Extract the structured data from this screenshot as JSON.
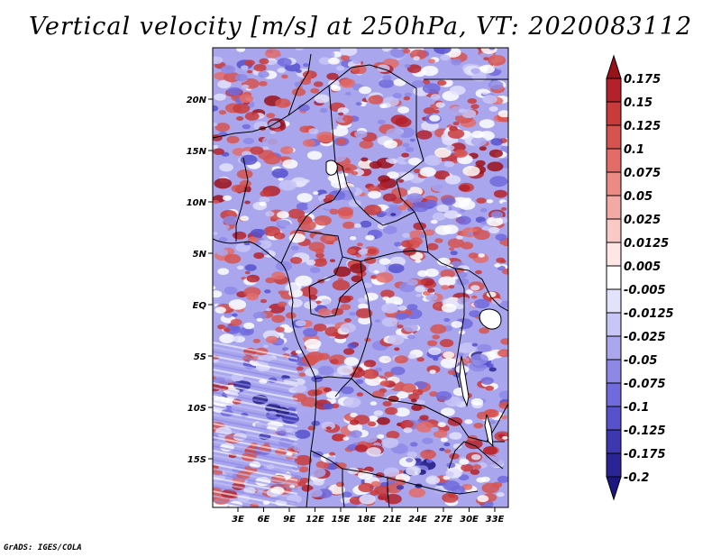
{
  "title": "Vertical velocity [m/s] at 250hPa, VT: 2020083112",
  "footer": "GrADS: IGES/COLA",
  "map": {
    "lat_labels": [
      "20N",
      "15N",
      "10N",
      "5N",
      "EQ",
      "5S",
      "10S",
      "15S"
    ],
    "lon_labels": [
      "3E",
      "6E",
      "9E",
      "12E",
      "15E",
      "18E",
      "21E",
      "24E",
      "27E",
      "30E",
      "33E"
    ]
  },
  "colorbar": {
    "labels": [
      "0.175",
      "0.15",
      "0.125",
      "0.1",
      "0.075",
      "0.05",
      "0.025",
      "0.0125",
      "0.005",
      "-0.005",
      "-0.0125",
      "-0.025",
      "-0.05",
      "-0.075",
      "-0.1",
      "-0.125",
      "-0.175",
      "-0.2"
    ],
    "colors": [
      "#9b1119",
      "#b5212a",
      "#c93a3a",
      "#d75350",
      "#e36c68",
      "#ec8a84",
      "#f3a9a4",
      "#f8c9c5",
      "#fde6e3",
      "#ffffff",
      "#e3e2fb",
      "#c8c6f6",
      "#aaa7ef",
      "#8d88e6",
      "#716add",
      "#5751cc",
      "#3d38b0",
      "#2b2496",
      "#1c1680"
    ]
  }
}
